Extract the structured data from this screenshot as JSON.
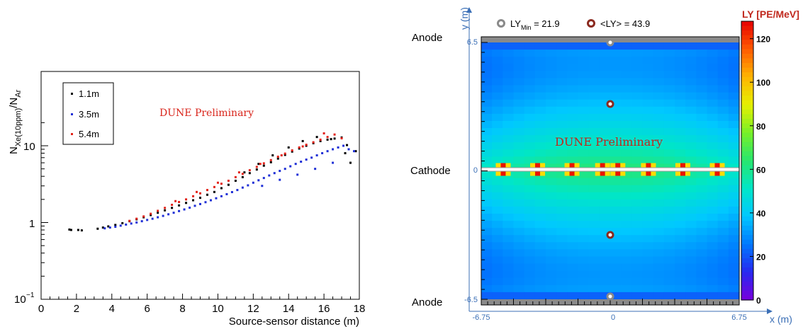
{
  "chart_data": [
    {
      "type": "scatter",
      "ylabel": "N_Xe(10ppm)/N_Ar",
      "ylabel_main": "N",
      "ylabel_sub1": "Xe(10ppm)",
      "ylabel_mid": "/N",
      "ylabel_sub2": "Ar",
      "xlabel": "Source-sensor distance (m)",
      "yscale": "log",
      "xlim": [
        0,
        18
      ],
      "ylim": [
        0.1,
        20
      ],
      "xticks": [
        "0",
        "2",
        "4",
        "6",
        "8",
        "10",
        "12",
        "14",
        "16",
        "18"
      ],
      "yticks": {
        "low_base": "10",
        "low_exp": "−1",
        "one": "1",
        "ten": "10"
      },
      "annotation": "DUNE Preliminary",
      "legend_position": "top-left",
      "series": [
        {
          "name": "1.1m",
          "color": "#000000",
          "x": [
            1.6,
            1.7,
            2.1,
            2.3,
            3.2,
            3.5,
            3.8,
            4.2,
            4.6,
            5.0,
            5.4,
            5.8,
            6.2,
            6.6,
            7.0,
            7.4,
            7.8,
            8.2,
            8.6,
            9.0,
            9.4,
            9.8,
            10.2,
            10.6,
            11.0,
            11.4,
            11.8,
            12.2,
            12.6,
            13.0,
            13.4,
            13.8,
            14.2,
            14.6,
            15.0,
            15.4,
            15.8,
            16.2,
            16.6,
            17.0,
            17.2,
            17.5,
            17.8,
            11.5,
            12.3,
            13.1,
            14.0,
            14.8,
            15.6,
            16.4,
            17.3
          ],
          "y": [
            0.81,
            0.8,
            0.8,
            0.79,
            0.83,
            0.86,
            0.89,
            0.93,
            0.98,
            1.04,
            1.1,
            1.17,
            1.25,
            1.34,
            1.44,
            1.55,
            1.67,
            1.8,
            1.95,
            2.1,
            2.3,
            2.5,
            2.8,
            3.1,
            3.5,
            3.9,
            4.4,
            4.9,
            5.5,
            6.1,
            6.8,
            7.6,
            8.4,
            9.2,
            10.0,
            10.8,
            11.5,
            12.0,
            12.4,
            12.8,
            8.0,
            6.0,
            8.5,
            4.5,
            5.8,
            7.5,
            9.5,
            11.5,
            13.0,
            12.2,
            10.2
          ]
        },
        {
          "name": "3.5m",
          "color": "#1f2fd6",
          "x": [
            3.6,
            3.9,
            4.2,
            4.5,
            4.8,
            5.1,
            5.4,
            5.7,
            6.0,
            6.3,
            6.6,
            6.9,
            7.2,
            7.5,
            7.8,
            8.1,
            8.4,
            8.7,
            9.0,
            9.3,
            9.6,
            9.9,
            10.2,
            10.5,
            10.8,
            11.1,
            11.4,
            11.7,
            12.0,
            12.3,
            12.6,
            12.9,
            13.2,
            13.5,
            13.8,
            14.1,
            14.4,
            14.7,
            15.0,
            15.3,
            15.6,
            15.9,
            16.2,
            16.5,
            16.8,
            17.1,
            17.4,
            17.7,
            12.5,
            13.5,
            14.5,
            15.5,
            16.5
          ],
          "y": [
            0.84,
            0.86,
            0.88,
            0.91,
            0.94,
            0.97,
            1.0,
            1.04,
            1.08,
            1.12,
            1.17,
            1.22,
            1.28,
            1.34,
            1.41,
            1.48,
            1.56,
            1.65,
            1.74,
            1.84,
            1.95,
            2.07,
            2.2,
            2.34,
            2.49,
            2.65,
            2.85,
            3.05,
            3.3,
            3.55,
            3.8,
            4.1,
            4.4,
            4.7,
            5.0,
            5.4,
            5.8,
            6.2,
            6.6,
            7.0,
            7.5,
            8.0,
            8.5,
            9.0,
            9.5,
            10.0,
            9.0,
            8.5,
            3.0,
            3.6,
            4.2,
            5.0,
            6.0
          ]
        },
        {
          "name": "5.4m",
          "color": "#e2231a",
          "x": [
            5.0,
            5.4,
            5.8,
            6.2,
            6.6,
            7.0,
            7.4,
            7.8,
            8.2,
            8.6,
            9.0,
            9.4,
            9.8,
            10.2,
            10.6,
            11.0,
            11.4,
            11.8,
            12.2,
            12.6,
            13.0,
            13.4,
            13.8,
            14.2,
            14.6,
            15.0,
            15.4,
            15.8,
            16.2,
            16.6,
            17.0,
            7.6,
            8.8,
            10.0,
            11.2,
            12.4,
            13.6,
            14.8,
            16.0
          ],
          "y": [
            1.05,
            1.12,
            1.2,
            1.3,
            1.42,
            1.55,
            1.7,
            1.85,
            2.0,
            2.2,
            2.4,
            2.65,
            2.9,
            3.2,
            3.5,
            3.9,
            4.3,
            4.8,
            5.3,
            5.9,
            6.5,
            7.2,
            7.9,
            8.7,
            9.5,
            10.3,
            11.1,
            12.0,
            13.0,
            14.0,
            12.5,
            1.9,
            2.5,
            3.3,
            4.5,
            5.8,
            7.5,
            9.8,
            14.5
          ]
        }
      ]
    },
    {
      "type": "heatmap",
      "title_min_label": "LY",
      "title_min_sub": "Min",
      "title_min_value": " = 21.9",
      "title_mean": "<LY> = 43.9",
      "colorbar_title": "LY [PE/MeV]",
      "colorbar_ticks": [
        "0",
        "20",
        "40",
        "60",
        "80",
        "100",
        "120"
      ],
      "colorbar_range": [
        0,
        128
      ],
      "xlabel": "x (m)",
      "ylabel": "y (m)",
      "xticks": [
        "-6.75",
        "0",
        "6.75"
      ],
      "yticks": [
        "6.5",
        "0",
        "-6.5"
      ],
      "xlim": [
        -6.75,
        6.75
      ],
      "ylim": [
        -6.5,
        6.5
      ],
      "side_labels": {
        "top": "Anode",
        "middle": "Cathode",
        "bottom": "Anode"
      },
      "annotation": "DUNE Preliminary",
      "markers": {
        "min": [
          [
            0,
            6.5
          ],
          [
            0,
            -6.5
          ]
        ],
        "mean": [
          [
            0,
            3.35
          ],
          [
            0,
            -3.35
          ]
        ]
      }
    }
  ]
}
